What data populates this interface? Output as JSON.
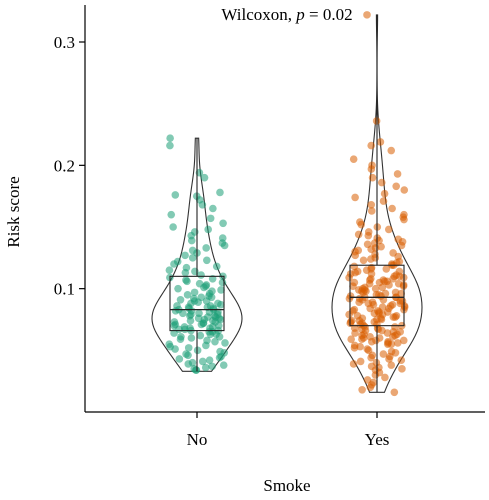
{
  "chart_data": {
    "type": "violin",
    "annotation": {
      "prefix": "Wilcoxon, ",
      "p_symbol": "p",
      "suffix": " = 0.02"
    },
    "xlabel": "Smoke",
    "ylabel": "Risk score",
    "categories": [
      "No",
      "Yes"
    ],
    "ylim": [
      0.0,
      0.33
    ],
    "yticks": [
      {
        "value": 0.1,
        "label": "0.1"
      },
      {
        "value": 0.2,
        "label": "0.2"
      },
      {
        "value": 0.3,
        "label": "0.3"
      }
    ],
    "series": [
      {
        "category": "No",
        "color": "#1B9E77",
        "min": 0.033,
        "q1": 0.066,
        "median": 0.083,
        "q3": 0.11,
        "max": 0.222,
        "points": [
          0.222,
          0.216,
          0.194,
          0.19,
          0.178,
          0.176,
          0.175,
          0.172,
          0.168,
          0.165,
          0.16,
          0.157,
          0.153,
          0.15,
          0.148,
          0.146,
          0.143,
          0.141,
          0.139,
          0.137,
          0.135,
          0.133,
          0.131,
          0.129,
          0.127,
          0.125,
          0.123,
          0.122,
          0.12,
          0.118,
          0.117,
          0.115,
          0.114,
          0.113,
          0.111,
          0.11,
          0.109,
          0.108,
          0.107,
          0.106,
          0.105,
          0.104,
          0.103,
          0.102,
          0.101,
          0.1,
          0.099,
          0.098,
          0.097,
          0.096,
          0.095,
          0.094,
          0.093,
          0.093,
          0.092,
          0.091,
          0.09,
          0.09,
          0.089,
          0.088,
          0.088,
          0.087,
          0.086,
          0.086,
          0.085,
          0.085,
          0.084,
          0.084,
          0.083,
          0.083,
          0.082,
          0.082,
          0.081,
          0.081,
          0.08,
          0.08,
          0.079,
          0.079,
          0.078,
          0.078,
          0.077,
          0.077,
          0.076,
          0.076,
          0.075,
          0.075,
          0.074,
          0.074,
          0.073,
          0.073,
          0.072,
          0.072,
          0.071,
          0.071,
          0.07,
          0.07,
          0.069,
          0.069,
          0.068,
          0.068,
          0.067,
          0.067,
          0.066,
          0.066,
          0.065,
          0.065,
          0.064,
          0.063,
          0.063,
          0.062,
          0.061,
          0.061,
          0.06,
          0.059,
          0.058,
          0.057,
          0.056,
          0.055,
          0.054,
          0.053,
          0.052,
          0.051,
          0.05,
          0.049,
          0.048,
          0.047,
          0.046,
          0.045,
          0.044,
          0.043,
          0.042,
          0.041,
          0.04,
          0.039,
          0.038,
          0.037,
          0.036,
          0.035,
          0.034,
          0.034
        ]
      },
      {
        "category": "Yes",
        "color": "#D95F02",
        "min": 0.016,
        "q1": 0.07,
        "median": 0.093,
        "q3": 0.119,
        "max": 0.322,
        "points": [
          0.322,
          0.236,
          0.219,
          0.216,
          0.212,
          0.205,
          0.2,
          0.197,
          0.193,
          0.19,
          0.186,
          0.183,
          0.18,
          0.177,
          0.174,
          0.171,
          0.168,
          0.165,
          0.163,
          0.16,
          0.158,
          0.156,
          0.154,
          0.152,
          0.15,
          0.148,
          0.146,
          0.144,
          0.143,
          0.141,
          0.14,
          0.139,
          0.138,
          0.137,
          0.136,
          0.135,
          0.134,
          0.133,
          0.132,
          0.131,
          0.13,
          0.129,
          0.128,
          0.127,
          0.126,
          0.125,
          0.124,
          0.123,
          0.122,
          0.121,
          0.12,
          0.119,
          0.119,
          0.118,
          0.117,
          0.116,
          0.116,
          0.115,
          0.114,
          0.114,
          0.113,
          0.112,
          0.112,
          0.111,
          0.11,
          0.11,
          0.109,
          0.109,
          0.108,
          0.108,
          0.107,
          0.107,
          0.106,
          0.106,
          0.105,
          0.105,
          0.104,
          0.104,
          0.103,
          0.103,
          0.102,
          0.102,
          0.101,
          0.101,
          0.1,
          0.1,
          0.099,
          0.099,
          0.098,
          0.098,
          0.097,
          0.097,
          0.096,
          0.096,
          0.095,
          0.095,
          0.094,
          0.094,
          0.093,
          0.093,
          0.093,
          0.092,
          0.092,
          0.091,
          0.091,
          0.09,
          0.09,
          0.089,
          0.089,
          0.088,
          0.088,
          0.087,
          0.087,
          0.086,
          0.086,
          0.085,
          0.085,
          0.084,
          0.084,
          0.083,
          0.083,
          0.082,
          0.082,
          0.081,
          0.081,
          0.08,
          0.08,
          0.079,
          0.079,
          0.078,
          0.078,
          0.077,
          0.077,
          0.076,
          0.076,
          0.075,
          0.075,
          0.074,
          0.074,
          0.073,
          0.073,
          0.072,
          0.072,
          0.071,
          0.071,
          0.07,
          0.07,
          0.069,
          0.069,
          0.068,
          0.068,
          0.067,
          0.067,
          0.066,
          0.066,
          0.065,
          0.065,
          0.064,
          0.064,
          0.063,
          0.063,
          0.062,
          0.062,
          0.061,
          0.061,
          0.06,
          0.06,
          0.059,
          0.059,
          0.058,
          0.058,
          0.057,
          0.057,
          0.056,
          0.056,
          0.055,
          0.055,
          0.054,
          0.053,
          0.052,
          0.051,
          0.05,
          0.049,
          0.048,
          0.047,
          0.046,
          0.045,
          0.044,
          0.043,
          0.042,
          0.041,
          0.04,
          0.039,
          0.038,
          0.037,
          0.036,
          0.035,
          0.034,
          0.032,
          0.03,
          0.028,
          0.026,
          0.024,
          0.022,
          0.02,
          0.018,
          0.016
        ]
      }
    ]
  }
}
